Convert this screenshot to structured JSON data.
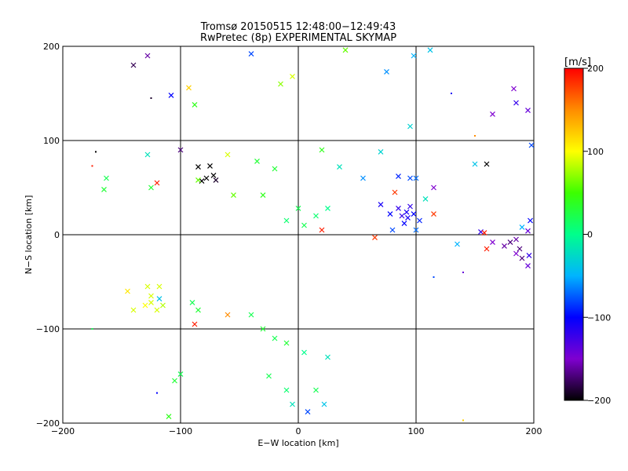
{
  "title_line1": "Tromsø 20150515 12:48:00−12:49:43",
  "title_line2": "RwPretec (8p) EXPERIMENTAL SKYMAP",
  "colorbar": {
    "unit_label": "[m/s]",
    "min": -200,
    "max": 200,
    "tick_labels": [
      "200",
      "100",
      "0",
      "−100",
      "−200"
    ],
    "tick_values": [
      200,
      100,
      0,
      -100,
      -200
    ]
  },
  "chart_data": {
    "type": "scatter",
    "title": "Tromsø 20150515 12:48:00−12:49:43",
    "subtitle": "RwPretec (8p) EXPERIMENTAL SKYMAP",
    "xlabel": "E−W location [km]",
    "ylabel": "N−S location [km]",
    "xlim": [
      -200,
      200
    ],
    "ylim": [
      -200,
      200
    ],
    "x_ticks": [
      -200,
      -100,
      0,
      100,
      200
    ],
    "y_ticks": [
      -200,
      -100,
      0,
      100,
      200
    ],
    "x_tick_labels": [
      "−200",
      "−100",
      "0",
      "100",
      "200"
    ],
    "y_tick_labels": [
      "−200",
      "−100",
      "0",
      "100",
      "200"
    ],
    "grid": true,
    "color_variable": "velocity [m/s]",
    "color_range": [
      -200,
      200
    ],
    "marker_types": [
      "dot",
      "x"
    ],
    "points": [
      {
        "x": -140,
        "y": 180,
        "v": -180,
        "m": "x"
      },
      {
        "x": -128,
        "y": 190,
        "v": -160,
        "m": "x"
      },
      {
        "x": -125,
        "y": 145,
        "v": -190,
        "m": "dot"
      },
      {
        "x": -108,
        "y": 148,
        "v": -100,
        "m": "x"
      },
      {
        "x": -93,
        "y": 156,
        "v": 120,
        "m": "x"
      },
      {
        "x": -88,
        "y": 138,
        "v": 40,
        "m": "x"
      },
      {
        "x": -40,
        "y": 192,
        "v": -80,
        "m": "x"
      },
      {
        "x": -15,
        "y": 160,
        "v": 70,
        "m": "x"
      },
      {
        "x": -5,
        "y": 168,
        "v": 90,
        "m": "x"
      },
      {
        "x": 40,
        "y": 196,
        "v": 60,
        "m": "x"
      },
      {
        "x": 75,
        "y": 173,
        "v": -60,
        "m": "x"
      },
      {
        "x": 98,
        "y": 190,
        "v": -50,
        "m": "x"
      },
      {
        "x": 112,
        "y": 196,
        "v": -40,
        "m": "x"
      },
      {
        "x": 95,
        "y": 115,
        "v": -30,
        "m": "x"
      },
      {
        "x": 130,
        "y": 150,
        "v": -110,
        "m": "dot"
      },
      {
        "x": 165,
        "y": 128,
        "v": -150,
        "m": "x"
      },
      {
        "x": 183,
        "y": 155,
        "v": -150,
        "m": "x"
      },
      {
        "x": 185,
        "y": 140,
        "v": -120,
        "m": "x"
      },
      {
        "x": 195,
        "y": 132,
        "v": -140,
        "m": "x"
      },
      {
        "x": 198,
        "y": 95,
        "v": -80,
        "m": "x"
      },
      {
        "x": 150,
        "y": 105,
        "v": 150,
        "m": "dot"
      },
      {
        "x": 160,
        "y": 75,
        "v": -200,
        "m": "x"
      },
      {
        "x": 150,
        "y": 75,
        "v": -40,
        "m": "x"
      },
      {
        "x": -172,
        "y": 88,
        "v": -200,
        "m": "dot"
      },
      {
        "x": -175,
        "y": 73,
        "v": 190,
        "m": "dot"
      },
      {
        "x": -163,
        "y": 60,
        "v": 20,
        "m": "x"
      },
      {
        "x": -165,
        "y": 48,
        "v": 30,
        "m": "x"
      },
      {
        "x": -128,
        "y": 85,
        "v": -20,
        "m": "x"
      },
      {
        "x": -120,
        "y": 55,
        "v": 190,
        "m": "x"
      },
      {
        "x": -125,
        "y": 50,
        "v": 30,
        "m": "x"
      },
      {
        "x": -100,
        "y": 90,
        "v": -170,
        "m": "x"
      },
      {
        "x": -85,
        "y": 72,
        "v": -200,
        "m": "x"
      },
      {
        "x": -75,
        "y": 73,
        "v": -200,
        "m": "x"
      },
      {
        "x": -72,
        "y": 63,
        "v": -200,
        "m": "x"
      },
      {
        "x": -78,
        "y": 60,
        "v": -200,
        "m": "x"
      },
      {
        "x": -82,
        "y": 57,
        "v": -200,
        "m": "x"
      },
      {
        "x": -70,
        "y": 58,
        "v": -190,
        "m": "x"
      },
      {
        "x": -85,
        "y": 58,
        "v": 60,
        "m": "x"
      },
      {
        "x": -60,
        "y": 85,
        "v": 90,
        "m": "x"
      },
      {
        "x": -35,
        "y": 78,
        "v": 30,
        "m": "x"
      },
      {
        "x": -20,
        "y": 70,
        "v": 30,
        "m": "x"
      },
      {
        "x": -55,
        "y": 42,
        "v": 60,
        "m": "x"
      },
      {
        "x": -30,
        "y": 42,
        "v": 40,
        "m": "x"
      },
      {
        "x": 20,
        "y": 90,
        "v": 40,
        "m": "x"
      },
      {
        "x": 35,
        "y": 72,
        "v": -20,
        "m": "x"
      },
      {
        "x": 55,
        "y": 60,
        "v": -60,
        "m": "x"
      },
      {
        "x": 70,
        "y": 88,
        "v": -30,
        "m": "x"
      },
      {
        "x": 85,
        "y": 62,
        "v": -90,
        "m": "x"
      },
      {
        "x": 95,
        "y": 60,
        "v": -80,
        "m": "x"
      },
      {
        "x": 82,
        "y": 45,
        "v": 180,
        "m": "x"
      },
      {
        "x": 100,
        "y": 60,
        "v": -70,
        "m": "x"
      },
      {
        "x": 115,
        "y": 50,
        "v": -150,
        "m": "x"
      },
      {
        "x": 108,
        "y": 38,
        "v": -20,
        "m": "x"
      },
      {
        "x": 115,
        "y": 22,
        "v": 180,
        "m": "x"
      },
      {
        "x": 70,
        "y": 32,
        "v": -110,
        "m": "x"
      },
      {
        "x": 78,
        "y": 22,
        "v": -100,
        "m": "x"
      },
      {
        "x": 85,
        "y": 28,
        "v": -120,
        "m": "x"
      },
      {
        "x": 88,
        "y": 20,
        "v": -120,
        "m": "x"
      },
      {
        "x": 92,
        "y": 24,
        "v": -110,
        "m": "x"
      },
      {
        "x": 93,
        "y": 18,
        "v": -110,
        "m": "x"
      },
      {
        "x": 95,
        "y": 30,
        "v": -120,
        "m": "x"
      },
      {
        "x": 98,
        "y": 22,
        "v": -100,
        "m": "x"
      },
      {
        "x": 90,
        "y": 12,
        "v": -100,
        "m": "x"
      },
      {
        "x": 103,
        "y": 15,
        "v": -90,
        "m": "x"
      },
      {
        "x": 80,
        "y": 5,
        "v": -80,
        "m": "x"
      },
      {
        "x": 100,
        "y": 5,
        "v": -70,
        "m": "x"
      },
      {
        "x": 65,
        "y": -3,
        "v": 180,
        "m": "x"
      },
      {
        "x": 20,
        "y": 5,
        "v": 190,
        "m": "x"
      },
      {
        "x": 5,
        "y": 10,
        "v": 20,
        "m": "x"
      },
      {
        "x": -10,
        "y": 15,
        "v": 10,
        "m": "x"
      },
      {
        "x": 0,
        "y": 28,
        "v": 20,
        "m": "x"
      },
      {
        "x": 15,
        "y": 20,
        "v": 10,
        "m": "x"
      },
      {
        "x": 25,
        "y": 28,
        "v": 0,
        "m": "x"
      },
      {
        "x": 155,
        "y": 3,
        "v": -120,
        "m": "x"
      },
      {
        "x": 158,
        "y": 2,
        "v": 190,
        "m": "x"
      },
      {
        "x": 160,
        "y": -15,
        "v": 190,
        "m": "x"
      },
      {
        "x": 165,
        "y": -8,
        "v": -150,
        "m": "x"
      },
      {
        "x": 175,
        "y": -12,
        "v": -160,
        "m": "x"
      },
      {
        "x": 180,
        "y": -8,
        "v": -170,
        "m": "x"
      },
      {
        "x": 185,
        "y": -5,
        "v": -160,
        "m": "x"
      },
      {
        "x": 188,
        "y": -15,
        "v": -170,
        "m": "x"
      },
      {
        "x": 190,
        "y": -25,
        "v": -170,
        "m": "x"
      },
      {
        "x": 185,
        "y": -20,
        "v": -150,
        "m": "x"
      },
      {
        "x": 196,
        "y": -22,
        "v": -120,
        "m": "x"
      },
      {
        "x": 195,
        "y": -33,
        "v": -140,
        "m": "x"
      },
      {
        "x": 197,
        "y": 15,
        "v": -100,
        "m": "x"
      },
      {
        "x": 195,
        "y": 4,
        "v": -140,
        "m": "x"
      },
      {
        "x": 190,
        "y": 8,
        "v": -50,
        "m": "x"
      },
      {
        "x": 135,
        "y": -10,
        "v": -50,
        "m": "x"
      },
      {
        "x": -145,
        "y": -60,
        "v": 110,
        "m": "x"
      },
      {
        "x": -128,
        "y": -55,
        "v": 90,
        "m": "x"
      },
      {
        "x": -118,
        "y": -55,
        "v": 90,
        "m": "x"
      },
      {
        "x": -125,
        "y": -65,
        "v": 90,
        "m": "x"
      },
      {
        "x": -130,
        "y": -75,
        "v": 100,
        "m": "x"
      },
      {
        "x": -125,
        "y": -72,
        "v": 90,
        "m": "x"
      },
      {
        "x": -120,
        "y": -80,
        "v": 90,
        "m": "x"
      },
      {
        "x": -140,
        "y": -80,
        "v": 90,
        "m": "x"
      },
      {
        "x": -115,
        "y": -75,
        "v": 80,
        "m": "x"
      },
      {
        "x": -118,
        "y": -68,
        "v": -40,
        "m": "x"
      },
      {
        "x": -90,
        "y": -72,
        "v": 20,
        "m": "x"
      },
      {
        "x": -85,
        "y": -80,
        "v": 30,
        "m": "x"
      },
      {
        "x": -88,
        "y": -95,
        "v": 190,
        "m": "x"
      },
      {
        "x": -60,
        "y": -85,
        "v": 150,
        "m": "x"
      },
      {
        "x": -40,
        "y": -85,
        "v": 20,
        "m": "x"
      },
      {
        "x": -30,
        "y": -100,
        "v": 30,
        "m": "x"
      },
      {
        "x": -20,
        "y": -110,
        "v": 20,
        "m": "x"
      },
      {
        "x": -10,
        "y": -115,
        "v": 30,
        "m": "x"
      },
      {
        "x": 5,
        "y": -125,
        "v": 0,
        "m": "x"
      },
      {
        "x": 25,
        "y": -130,
        "v": -20,
        "m": "x"
      },
      {
        "x": -25,
        "y": -150,
        "v": 20,
        "m": "x"
      },
      {
        "x": -10,
        "y": -165,
        "v": 10,
        "m": "x"
      },
      {
        "x": 15,
        "y": -165,
        "v": 20,
        "m": "x"
      },
      {
        "x": -5,
        "y": -180,
        "v": -20,
        "m": "x"
      },
      {
        "x": 22,
        "y": -180,
        "v": -40,
        "m": "x"
      },
      {
        "x": 8,
        "y": -188,
        "v": -80,
        "m": "x"
      },
      {
        "x": -110,
        "y": -193,
        "v": 40,
        "m": "x"
      },
      {
        "x": -105,
        "y": -155,
        "v": 30,
        "m": "x"
      },
      {
        "x": -100,
        "y": -148,
        "v": 20,
        "m": "x"
      },
      {
        "x": -120,
        "y": -168,
        "v": -100,
        "m": "dot"
      },
      {
        "x": -175,
        "y": -100,
        "v": 20,
        "m": "dot"
      },
      {
        "x": 140,
        "y": -197,
        "v": 120,
        "m": "dot"
      },
      {
        "x": 115,
        "y": -45,
        "v": -80,
        "m": "dot"
      },
      {
        "x": 140,
        "y": -40,
        "v": -140,
        "m": "dot"
      }
    ]
  }
}
